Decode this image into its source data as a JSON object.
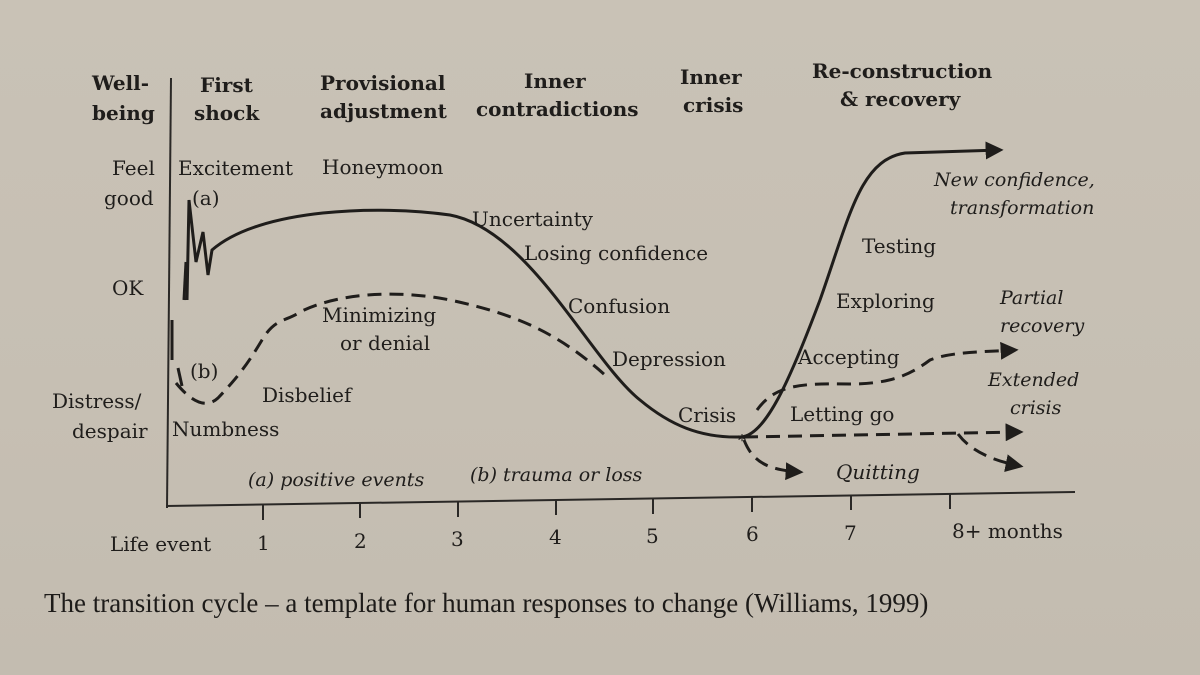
{
  "axis": {
    "y_title": [
      "Well-",
      "being"
    ],
    "y_levels": {
      "feel_good": [
        "Feel",
        "good"
      ],
      "ok": "OK",
      "distress": [
        "Distress/",
        "despair"
      ]
    },
    "x_ticks": [
      "Life event",
      "1",
      "2",
      "3",
      "4",
      "5",
      "6",
      "7",
      "8+ months"
    ]
  },
  "phases": {
    "first_shock": [
      "First",
      "shock"
    ],
    "provisional": [
      "Provisional",
      "adjustment"
    ],
    "inner_contradictions": [
      "Inner",
      "contradictions"
    ],
    "inner_crisis": [
      "Inner",
      "crisis"
    ],
    "reconstruction": [
      "Re-construction",
      "& recovery"
    ]
  },
  "stages": {
    "excitement": "Excitement",
    "a_marker": "(a)",
    "honeymoon": "Honeymoon",
    "uncertainty": "Uncertainty",
    "losing_confidence": "Losing confidence",
    "confusion": "Confusion",
    "depression": "Depression",
    "crisis": "Crisis",
    "minimizing": [
      "Minimizing",
      "or denial"
    ],
    "b_marker": "(b)",
    "disbelief": "Disbelief",
    "numbness": "Numbness",
    "testing": "Testing",
    "exploring": "Exploring",
    "accepting": "Accepting",
    "letting_go": "Letting go",
    "quitting": "Quitting",
    "new_confidence": [
      "New confidence,",
      "transformation"
    ],
    "partial_recovery": [
      "Partial",
      "recovery"
    ],
    "extended_crisis": [
      "Extended",
      "crisis"
    ]
  },
  "legend": {
    "positive": "(a) positive events",
    "trauma": "(b) trauma or loss"
  },
  "caption": "The transition cycle – a template for human responses to change (Williams, 1999)"
}
